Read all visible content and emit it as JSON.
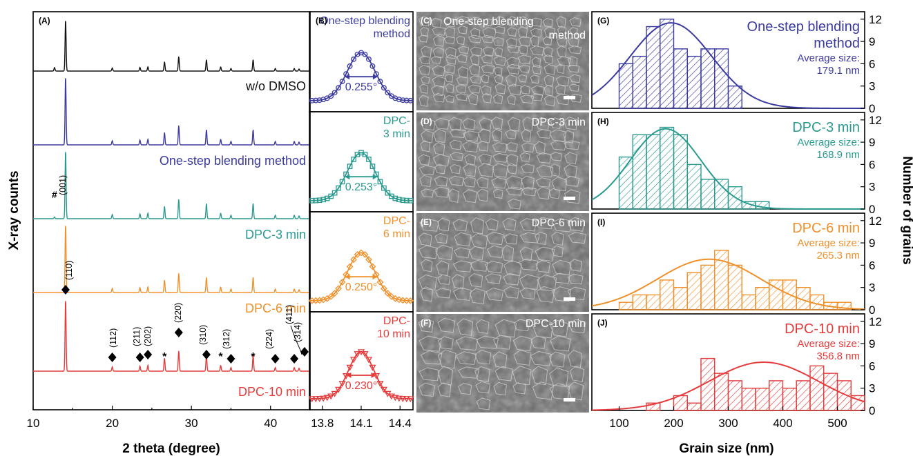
{
  "colors": {
    "black": "#111111",
    "blue": "#3a3aa0",
    "teal": "#2a9a8f",
    "orange": "#f0902a",
    "red": "#e53b3b"
  },
  "panel_labels": {
    "A": "(A)",
    "B": "(B)",
    "C": "(C)",
    "D": "(D)",
    "E": "(E)",
    "F": "(F)",
    "G": "(G)",
    "H": "(H)",
    "I": "(I)",
    "J": "(J)"
  },
  "chart_data": [
    {
      "id": "xrd",
      "type": "line",
      "xlabel": "2 theta (degree)",
      "ylabel": "X-ray counts",
      "xlim": [
        10,
        45
      ],
      "xticks": [
        10,
        20,
        30,
        40
      ],
      "series": [
        {
          "name": "w/o DMSO",
          "color": "black"
        },
        {
          "name": "One-step blending method",
          "color": "blue"
        },
        {
          "name": "DPC-3 min",
          "color": "teal"
        },
        {
          "name": "DPC-6 min",
          "color": "orange"
        },
        {
          "name": "DPC-10 min",
          "color": "red"
        }
      ],
      "peaks": [
        {
          "pos": 14.1,
          "h": 1.0
        },
        {
          "pos": 20.0,
          "h": 0.06
        },
        {
          "pos": 23.5,
          "h": 0.07
        },
        {
          "pos": 24.5,
          "h": 0.08
        },
        {
          "pos": 26.6,
          "h": 0.18
        },
        {
          "pos": 28.4,
          "h": 0.28
        },
        {
          "pos": 31.9,
          "h": 0.22
        },
        {
          "pos": 33.7,
          "h": 0.08
        },
        {
          "pos": 35.0,
          "h": 0.05
        },
        {
          "pos": 37.8,
          "h": 0.22
        },
        {
          "pos": 40.6,
          "h": 0.05
        },
        {
          "pos": 43.0,
          "h": 0.05
        },
        {
          "pos": 43.6,
          "h": 0.04
        }
      ],
      "pbi2_peak_label": "(001)",
      "pbi2_marker": "#",
      "miller": [
        {
          "label": "(110)",
          "pos": 14.1
        },
        {
          "label": "(112)",
          "pos": 20.0
        },
        {
          "label": "(211)",
          "pos": 23.5
        },
        {
          "label": "(202)",
          "pos": 24.5
        },
        {
          "label": "(220)",
          "pos": 28.4
        },
        {
          "label": "(310)",
          "pos": 31.9
        },
        {
          "label": "(312)",
          "pos": 35.0
        },
        {
          "label": "(224)",
          "pos": 40.6
        },
        {
          "label": "(411)",
          "pos": 43.0
        },
        {
          "label": "(314)",
          "pos": 43.6
        }
      ],
      "star_marker": "*",
      "star_positions": [
        26.6,
        33.7,
        37.8
      ]
    },
    {
      "id": "peak_zoom",
      "type": "line",
      "xlim": [
        13.7,
        14.5
      ],
      "xticks": [
        13.8,
        14.1,
        14.4
      ],
      "center": 14.1,
      "panels": [
        {
          "label": "One-step blending method",
          "lines": [
            "One-step blending",
            "method"
          ],
          "fwhm": "0.255°",
          "fwhm_value": 0.255,
          "color": "blue",
          "marker": "circle"
        },
        {
          "label": "DPC-3 min",
          "lines": [
            "DPC-",
            "3 min"
          ],
          "fwhm": "0.253°",
          "fwhm_value": 0.253,
          "color": "teal",
          "marker": "square"
        },
        {
          "label": "DPC-6 min",
          "lines": [
            "DPC-",
            "6 min"
          ],
          "fwhm": "0.250°",
          "fwhm_value": 0.25,
          "color": "orange",
          "marker": "diamond"
        },
        {
          "label": "DPC-10 min",
          "lines": [
            "DPC-",
            "10 min"
          ],
          "fwhm": "0.230°",
          "fwhm_value": 0.23,
          "color": "red",
          "marker": "triangle"
        }
      ]
    },
    {
      "id": "sem",
      "type": "image",
      "panels": [
        {
          "lines": [
            "One-step blending",
            "method"
          ]
        },
        {
          "lines": [
            "DPC-3 min"
          ]
        },
        {
          "lines": [
            "DPC-6 min"
          ]
        },
        {
          "lines": [
            "DPC-10 min"
          ]
        }
      ]
    },
    {
      "id": "grain_hist",
      "type": "bar",
      "xlabel": "Grain size (nm)",
      "ylabel": "Number of grains",
      "xlim": [
        50,
        550
      ],
      "xticks": [
        100,
        200,
        300,
        400,
        500
      ],
      "ylim": [
        0,
        13
      ],
      "yticks": [
        0,
        3,
        6,
        9,
        12
      ],
      "bin_width": 25,
      "panels": [
        {
          "label": "One-step blending method",
          "lines": [
            "One-step blending",
            "method"
          ],
          "avg_label": "Average size:",
          "avg": "179.1 nm",
          "color": "blue",
          "bins_start": 100,
          "counts": [
            6,
            7,
            11,
            12,
            8,
            7,
            8,
            8,
            3
          ],
          "fit": {
            "mean": 195,
            "sigma": 75,
            "amp": 11.5
          }
        },
        {
          "label": "DPC-3 min",
          "lines": [
            "DPC-3 min"
          ],
          "avg_label": "Average size:",
          "avg": "168.9 nm",
          "color": "teal",
          "bins_start": 100,
          "counts": [
            7,
            10,
            10,
            11,
            10,
            6,
            4,
            4,
            3,
            1,
            1
          ],
          "fit": {
            "mean": 185,
            "sigma": 65,
            "amp": 10.8
          }
        },
        {
          "label": "DPC-6 min",
          "lines": [
            "DPC-6 min"
          ],
          "avg_label": "Average size:",
          "avg": "265.3 nm",
          "color": "orange",
          "bins_start": 100,
          "counts": [
            1,
            2,
            2,
            4,
            3,
            5,
            6,
            8,
            6,
            2,
            3,
            4,
            4,
            3,
            2,
            1,
            1
          ],
          "fit": {
            "mean": 265,
            "sigma": 95,
            "amp": 6.8
          }
        },
        {
          "label": "DPC-10 min",
          "lines": [
            "DPC-10 min"
          ],
          "avg_label": "Average size:",
          "avg": "356.8 nm",
          "color": "red",
          "bins_start": 150,
          "counts": [
            1,
            0,
            2,
            1,
            7,
            5,
            4,
            3,
            3,
            4,
            3,
            4,
            6,
            5,
            4,
            2
          ],
          "fit": {
            "mean": 365,
            "sigma": 100,
            "amp": 6.5
          }
        }
      ]
    }
  ]
}
